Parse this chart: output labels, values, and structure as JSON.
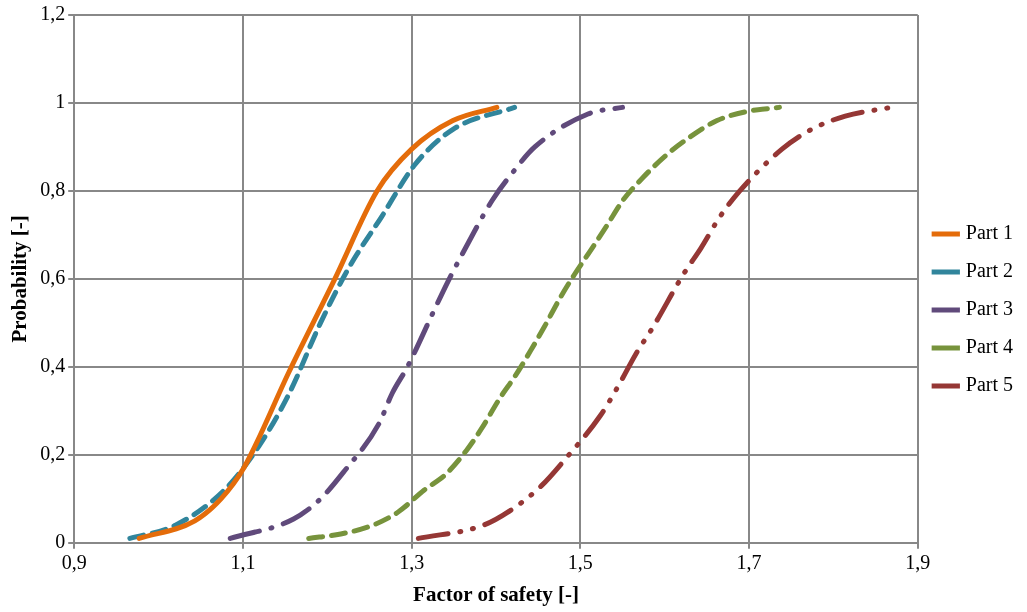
{
  "chart_data": {
    "type": "line",
    "xlabel": "Factor of safety [-]",
    "ylabel": "Probability [-]",
    "xlim": [
      0.9,
      1.9
    ],
    "xticks": [
      {
        "value": 0.9,
        "label": "0,9"
      },
      {
        "value": 1.1,
        "label": "1,1"
      },
      {
        "value": 1.3,
        "label": "1,3"
      },
      {
        "value": 1.5,
        "label": "1,5"
      },
      {
        "value": 1.7,
        "label": "1,7"
      },
      {
        "value": 1.9,
        "label": "1,9"
      }
    ],
    "ylim": [
      0,
      1.2
    ],
    "yticks": [
      0,
      {
        "value": 0.2,
        "label": "0,2"
      },
      {
        "value": 0.4,
        "label": "0,4"
      },
      {
        "value": 0.6,
        "label": "0,6"
      },
      {
        "value": 0.8,
        "label": "0,8"
      },
      1,
      {
        "value": 1.2,
        "label": "1,2"
      }
    ],
    "grid": true,
    "legend": "right",
    "marker": "none",
    "series": [
      {
        "name": "Part 1",
        "color": "#e46c0a",
        "line_style": "solid",
        "x": [
          0.977,
          1.043,
          1.074,
          1.101,
          1.155,
          1.209,
          1.259,
          1.3,
          1.349,
          1.401
        ],
        "values": [
          0.01,
          0.05,
          0.1,
          0.17,
          0.39,
          0.6,
          0.8,
          0.895,
          0.96,
          0.99
        ]
      },
      {
        "name": "Part 2",
        "color": "#31859c",
        "line_style": "dashed",
        "x": [
          0.966,
          1.02,
          1.078,
          1.119,
          1.155,
          1.192,
          1.227,
          1.264,
          1.304,
          1.349,
          1.422
        ],
        "values": [
          0.01,
          0.04,
          0.12,
          0.22,
          0.34,
          0.5,
          0.63,
          0.74,
          0.86,
          0.94,
          0.99
        ]
      },
      {
        "name": "Part 3",
        "color": "#604a7b",
        "line_style": "dashdot",
        "x": [
          1.085,
          1.16,
          1.192,
          1.219,
          1.261,
          1.277,
          1.295,
          1.327,
          1.342,
          1.361,
          1.396,
          1.419,
          1.446,
          1.509,
          1.55
        ],
        "values": [
          0.01,
          0.054,
          0.1,
          0.16,
          0.27,
          0.34,
          0.4,
          0.53,
          0.59,
          0.66,
          0.78,
          0.84,
          0.9,
          0.975,
          0.99
        ]
      },
      {
        "name": "Part 4",
        "color": "#77933c",
        "line_style": "dashed",
        "x": [
          1.178,
          1.216,
          1.254,
          1.284,
          1.315,
          1.34,
          1.365,
          1.383,
          1.405,
          1.423,
          1.442,
          1.457,
          1.477,
          1.493,
          1.514,
          1.531,
          1.551,
          1.574,
          1.601,
          1.628,
          1.662,
          1.696,
          1.736
        ],
        "values": [
          0.01,
          0.02,
          0.04,
          0.07,
          0.12,
          0.155,
          0.21,
          0.26,
          0.33,
          0.38,
          0.44,
          0.49,
          0.56,
          0.61,
          0.67,
          0.72,
          0.78,
          0.83,
          0.88,
          0.92,
          0.96,
          0.98,
          0.99
        ]
      },
      {
        "name": "Part 5",
        "color": "#953735",
        "line_style": "dashdotdot",
        "x": [
          1.308,
          1.385,
          1.422,
          1.454,
          1.482,
          1.524,
          1.546,
          1.566,
          1.586,
          1.622,
          1.643,
          1.665,
          1.689,
          1.739,
          1.774,
          1.814,
          1.868
        ],
        "values": [
          0.01,
          0.04,
          0.08,
          0.13,
          0.19,
          0.29,
          0.36,
          0.43,
          0.49,
          0.61,
          0.67,
          0.74,
          0.8,
          0.895,
          0.94,
          0.97,
          0.99
        ]
      }
    ]
  }
}
